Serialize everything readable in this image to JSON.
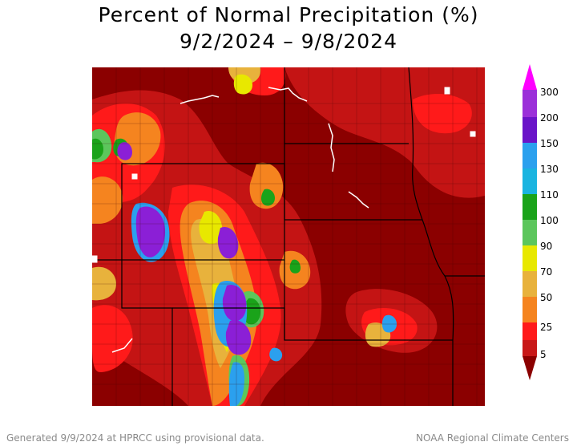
{
  "title": {
    "line1": "Percent of Normal Precipitation (%)",
    "line2": "9/2/2024 – 9/8/2024"
  },
  "legend": {
    "ticks": [
      "300",
      "200",
      "150",
      "130",
      "110",
      "100",
      "90",
      "70",
      "50",
      "25",
      "5"
    ],
    "colors": [
      "#ff00ff",
      "#9b30d9",
      "#6a14c8",
      "#2ba0ee",
      "#1ab4e0",
      "#1aa31a",
      "#5cc65c",
      "#e8e800",
      "#e8b23c",
      "#f5841f",
      "#ff1a1a",
      "#c81818",
      "#8b0000"
    ]
  },
  "map_colors": {
    "base": "#8b0000",
    "dark_red": "#c41414",
    "red": "#ff1a1a",
    "orange": "#f5841f",
    "tan": "#e8b23c",
    "yellow": "#e8e800",
    "light_green": "#5cc65c",
    "green": "#1aa31a",
    "cyan": "#2ba0ee",
    "blue": "#1f5fe0",
    "purple": "#8b1fd6",
    "white": "#ffffff"
  },
  "footer": {
    "left": "Generated 9/9/2024 at HPRCC using provisional data.",
    "right": "NOAA Regional Climate Centers"
  }
}
